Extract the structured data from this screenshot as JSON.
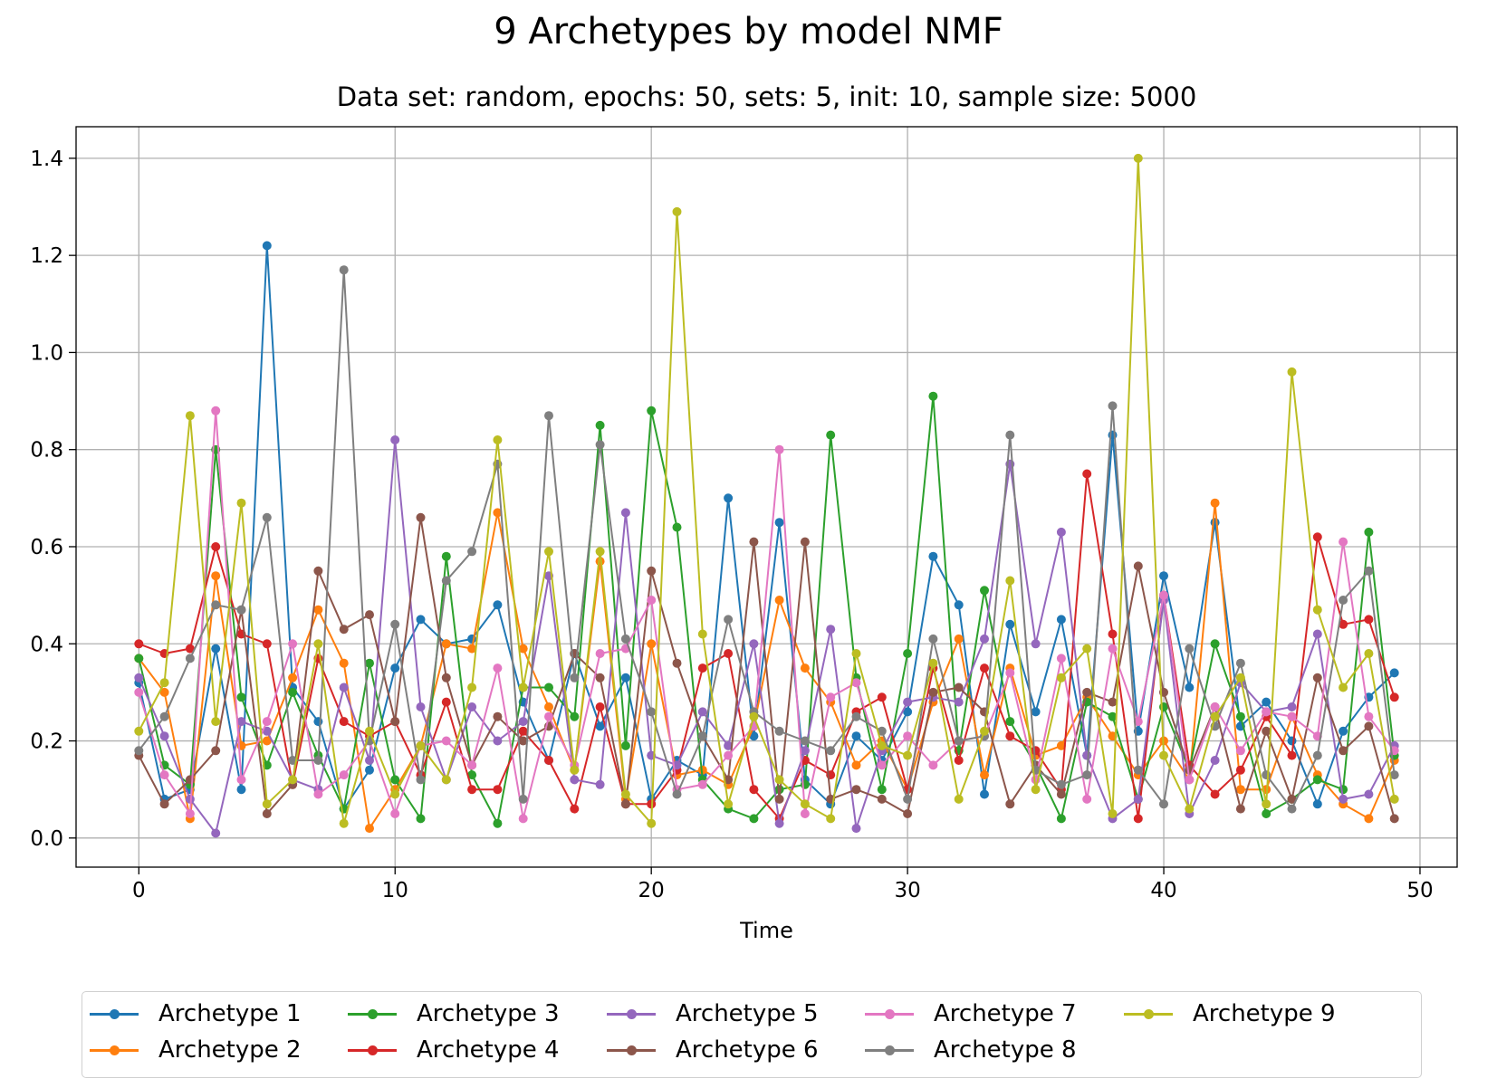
{
  "figure": {
    "title": "9 Archetypes by model NMF",
    "subtitle": "Data set: random, epochs: 50, sets: 5, init: 10, sample size: 5000"
  },
  "chart_data": {
    "type": "line",
    "xlabel": "Time",
    "ylabel": "",
    "xlim": [
      -2.45,
      51.45
    ],
    "ylim": [
      -0.06,
      1.465
    ],
    "xticks": [
      0,
      10,
      20,
      30,
      40,
      50
    ],
    "yticks": [
      0.0,
      0.2,
      0.4,
      0.6,
      0.8,
      1.0,
      1.2,
      1.4
    ],
    "grid": true,
    "legend": "bottom-outside, 5 columns",
    "x": [
      0,
      1,
      2,
      3,
      4,
      5,
      6,
      7,
      8,
      9,
      10,
      11,
      12,
      13,
      14,
      15,
      16,
      17,
      18,
      19,
      20,
      21,
      22,
      23,
      24,
      25,
      26,
      27,
      28,
      29,
      30,
      31,
      32,
      33,
      34,
      35,
      36,
      37,
      38,
      39,
      40,
      41,
      42,
      43,
      44,
      45,
      46,
      47,
      48,
      49
    ],
    "series": [
      {
        "name": "Archetype 1",
        "color": "#1f77b4",
        "values": [
          0.32,
          0.08,
          0.1,
          0.39,
          0.1,
          1.22,
          0.31,
          0.24,
          0.06,
          0.14,
          0.35,
          0.45,
          0.4,
          0.41,
          0.48,
          0.28,
          0.16,
          0.38,
          0.23,
          0.33,
          0.08,
          0.16,
          0.13,
          0.7,
          0.21,
          0.65,
          0.12,
          0.07,
          0.21,
          0.16,
          0.26,
          0.58,
          0.48,
          0.09,
          0.44,
          0.26,
          0.45,
          0.17,
          0.83,
          0.22,
          0.54,
          0.31,
          0.65,
          0.23,
          0.28,
          0.2,
          0.07,
          0.22,
          0.29,
          0.34
        ]
      },
      {
        "name": "Archetype 2",
        "color": "#ff7f0e",
        "values": [
          0.37,
          0.3,
          0.04,
          0.54,
          0.19,
          0.2,
          0.33,
          0.47,
          0.36,
          0.02,
          0.1,
          0.19,
          0.4,
          0.39,
          0.67,
          0.39,
          0.27,
          0.14,
          0.57,
          0.08,
          0.4,
          0.13,
          0.14,
          0.11,
          0.23,
          0.49,
          0.35,
          0.28,
          0.15,
          0.2,
          0.1,
          0.28,
          0.41,
          0.13,
          0.35,
          0.17,
          0.19,
          0.29,
          0.21,
          0.13,
          0.2,
          0.12,
          0.69,
          0.1,
          0.1,
          0.25,
          0.13,
          0.07,
          0.04,
          0.16
        ]
      },
      {
        "name": "Archetype 3",
        "color": "#2ca02c",
        "values": [
          0.37,
          0.15,
          0.11,
          0.8,
          0.29,
          0.15,
          0.3,
          0.17,
          0.06,
          0.36,
          0.12,
          0.04,
          0.58,
          0.13,
          0.03,
          0.31,
          0.31,
          0.25,
          0.85,
          0.19,
          0.88,
          0.64,
          0.12,
          0.06,
          0.04,
          0.1,
          0.11,
          0.83,
          0.33,
          0.1,
          0.38,
          0.91,
          0.18,
          0.51,
          0.24,
          0.15,
          0.04,
          0.28,
          0.25,
          0.08,
          0.27,
          0.14,
          0.4,
          0.25,
          0.05,
          0.08,
          0.12,
          0.1,
          0.63,
          0.17
        ]
      },
      {
        "name": "Archetype 4",
        "color": "#d62728",
        "values": [
          0.4,
          0.38,
          0.39,
          0.6,
          0.42,
          0.4,
          0.11,
          0.37,
          0.24,
          0.21,
          0.24,
          0.13,
          0.28,
          0.1,
          0.1,
          0.22,
          0.16,
          0.06,
          0.27,
          0.07,
          0.07,
          0.14,
          0.35,
          0.38,
          0.1,
          0.04,
          0.16,
          0.13,
          0.26,
          0.29,
          0.1,
          0.35,
          0.16,
          0.35,
          0.21,
          0.18,
          0.1,
          0.75,
          0.42,
          0.04,
          0.5,
          0.15,
          0.09,
          0.14,
          0.25,
          0.17,
          0.62,
          0.44,
          0.45,
          0.29
        ]
      },
      {
        "name": "Archetype 5",
        "color": "#9467bd",
        "values": [
          0.33,
          0.21,
          0.08,
          0.01,
          0.24,
          0.22,
          0.12,
          0.1,
          0.31,
          0.16,
          0.82,
          0.27,
          0.12,
          0.27,
          0.2,
          0.24,
          0.54,
          0.12,
          0.11,
          0.67,
          0.17,
          0.15,
          0.26,
          0.19,
          0.4,
          0.03,
          0.18,
          0.43,
          0.02,
          0.18,
          0.28,
          0.29,
          0.28,
          0.41,
          0.77,
          0.4,
          0.63,
          0.17,
          0.04,
          0.08,
          0.49,
          0.05,
          0.16,
          0.32,
          0.26,
          0.27,
          0.42,
          0.08,
          0.09,
          0.19
        ]
      },
      {
        "name": "Archetype 6",
        "color": "#8c564b",
        "values": [
          0.17,
          0.07,
          0.12,
          0.18,
          0.47,
          0.05,
          0.11,
          0.55,
          0.43,
          0.46,
          0.24,
          0.66,
          0.33,
          0.15,
          0.25,
          0.2,
          0.23,
          0.38,
          0.33,
          0.07,
          0.55,
          0.36,
          0.21,
          0.12,
          0.61,
          0.08,
          0.61,
          0.08,
          0.1,
          0.08,
          0.05,
          0.3,
          0.31,
          0.26,
          0.07,
          0.15,
          0.09,
          0.3,
          0.28,
          0.56,
          0.3,
          0.14,
          0.27,
          0.06,
          0.22,
          0.08,
          0.33,
          0.18,
          0.23,
          0.04
        ]
      },
      {
        "name": "Archetype 7",
        "color": "#e377c2",
        "values": [
          0.3,
          0.13,
          0.05,
          0.88,
          0.12,
          0.24,
          0.4,
          0.09,
          0.13,
          0.2,
          0.05,
          0.19,
          0.2,
          0.15,
          0.35,
          0.04,
          0.25,
          0.15,
          0.38,
          0.39,
          0.49,
          0.1,
          0.11,
          0.17,
          0.23,
          0.8,
          0.05,
          0.29,
          0.32,
          0.15,
          0.21,
          0.15,
          0.2,
          0.21,
          0.34,
          0.12,
          0.37,
          0.08,
          0.39,
          0.24,
          0.5,
          0.12,
          0.27,
          0.18,
          0.26,
          0.25,
          0.21,
          0.61,
          0.25,
          0.18
        ]
      },
      {
        "name": "Archetype 8",
        "color": "#7f7f7f",
        "values": [
          0.18,
          0.25,
          0.37,
          0.48,
          0.47,
          0.66,
          0.16,
          0.16,
          1.17,
          0.2,
          0.44,
          0.12,
          0.53,
          0.59,
          0.77,
          0.08,
          0.87,
          0.33,
          0.81,
          0.41,
          0.26,
          0.09,
          0.21,
          0.45,
          0.26,
          0.22,
          0.2,
          0.18,
          0.25,
          0.22,
          0.08,
          0.41,
          0.2,
          0.21,
          0.83,
          0.14,
          0.11,
          0.13,
          0.89,
          0.14,
          0.07,
          0.39,
          0.23,
          0.36,
          0.13,
          0.06,
          0.17,
          0.49,
          0.55,
          0.13
        ]
      },
      {
        "name": "Archetype 9",
        "color": "#bcbd22",
        "values": [
          0.22,
          0.32,
          0.87,
          0.24,
          0.69,
          0.07,
          0.12,
          0.4,
          0.03,
          0.22,
          0.09,
          0.19,
          0.12,
          0.31,
          0.82,
          0.31,
          0.59,
          0.14,
          0.59,
          0.09,
          0.03,
          1.29,
          0.42,
          0.07,
          0.25,
          0.12,
          0.07,
          0.04,
          0.38,
          0.19,
          0.17,
          0.36,
          0.08,
          0.22,
          0.53,
          0.1,
          0.33,
          0.39,
          0.05,
          1.4,
          0.17,
          0.06,
          0.25,
          0.33,
          0.07,
          0.96,
          0.47,
          0.31,
          0.38,
          0.08
        ]
      }
    ]
  }
}
